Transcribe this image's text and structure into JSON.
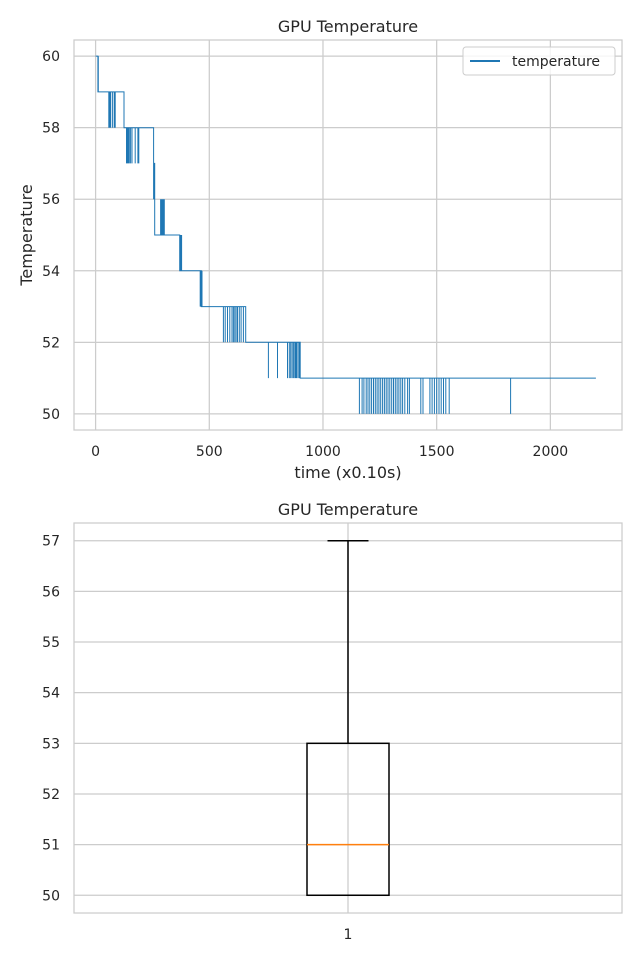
{
  "colors": {
    "series": "#1f77b4",
    "grid": "#cccccc",
    "spine": "#cccccc",
    "median": "#ff7f0e",
    "box": "#000000",
    "text": "#262626"
  },
  "chart_data": [
    {
      "type": "line",
      "title": "GPU Temperature",
      "xlabel": "time (x0.10s)",
      "ylabel": "Temperature",
      "xlim": [
        -95,
        2315
      ],
      "ylim": [
        49.55,
        60.45
      ],
      "xticks": [
        0,
        500,
        1000,
        1500,
        2000
      ],
      "yticks": [
        50,
        52,
        54,
        56,
        58,
        60
      ],
      "grid": true,
      "legend": "top-right",
      "series": [
        {
          "name": "temperature",
          "color": "#1f77b4",
          "segments": [
            {
              "x0": 0,
              "x1": 10,
              "value": 60
            },
            {
              "x0": 10,
              "x1": 125,
              "value": 59
            },
            {
              "x0": 125,
              "x1": 255,
              "value": 58
            },
            {
              "x0": 255,
              "x1": 260,
              "value": 57
            },
            {
              "x0": 260,
              "x1": 370,
              "value": 55
            },
            {
              "x0": 370,
              "x1": 465,
              "value": 54
            },
            {
              "x0": 465,
              "x1": 660,
              "value": 53
            },
            {
              "x0": 660,
              "x1": 900,
              "value": 52
            },
            {
              "x0": 900,
              "x1": 2200,
              "value": 51
            }
          ],
          "spikes": [
            {
              "x": [
                10,
                12
              ],
              "from": 59,
              "to": 60
            },
            {
              "x": [
                58,
                62,
                66,
                74,
                82,
                86
              ],
              "from": 59,
              "to": 58
            },
            {
              "x": [
                136,
                140,
                144,
                148,
                154,
                160,
                174,
                186,
                190
              ],
              "from": 58,
              "to": 57
            },
            {
              "x": [
                255,
                258
              ],
              "from": 57,
              "to": 56
            },
            {
              "x": [
                286,
                290,
                294,
                298,
                302
              ],
              "from": 56,
              "to": 55
            },
            {
              "x": [
                370,
                374,
                378
              ],
              "from": 55,
              "to": 54
            },
            {
              "x": [
                460,
                464,
                468
              ],
              "from": 54,
              "to": 53
            },
            {
              "x": [
                562,
                570,
                580,
                590,
                600,
                606,
                612,
                618,
                624,
                632,
                640,
                650
              ],
              "from": 53,
              "to": 52
            },
            {
              "x": [
                760,
                800,
                844,
                852,
                858,
                864,
                870,
                876,
                880,
                884,
                890,
                896,
                900
              ],
              "from": 52,
              "to": 51
            },
            {
              "x": [
                1160,
                1172,
                1180,
                1190,
                1198,
                1206,
                1214,
                1222,
                1230,
                1238,
                1246,
                1254,
                1262,
                1270,
                1278,
                1286,
                1294,
                1302,
                1310,
                1318,
                1326,
                1334,
                1342,
                1350,
                1360,
                1372,
                1380,
                1430,
                1440,
                1470,
                1480,
                1490,
                1500,
                1510,
                1520,
                1530,
                1540,
                1555
              ],
              "from": 51,
              "to": 50
            },
            {
              "x": [
                1825
              ],
              "from": 50,
              "to": 51
            }
          ]
        }
      ]
    },
    {
      "type": "box",
      "title": "GPU Temperature",
      "categories": [
        "1"
      ],
      "ylim": [
        49.65,
        57.35
      ],
      "yticks": [
        50,
        51,
        52,
        53,
        54,
        55,
        56,
        57
      ],
      "grid": true,
      "boxes": [
        {
          "whisker_low": 50,
          "q1": 50,
          "median": 51,
          "q3": 53,
          "whisker_high": 57
        }
      ]
    }
  ]
}
